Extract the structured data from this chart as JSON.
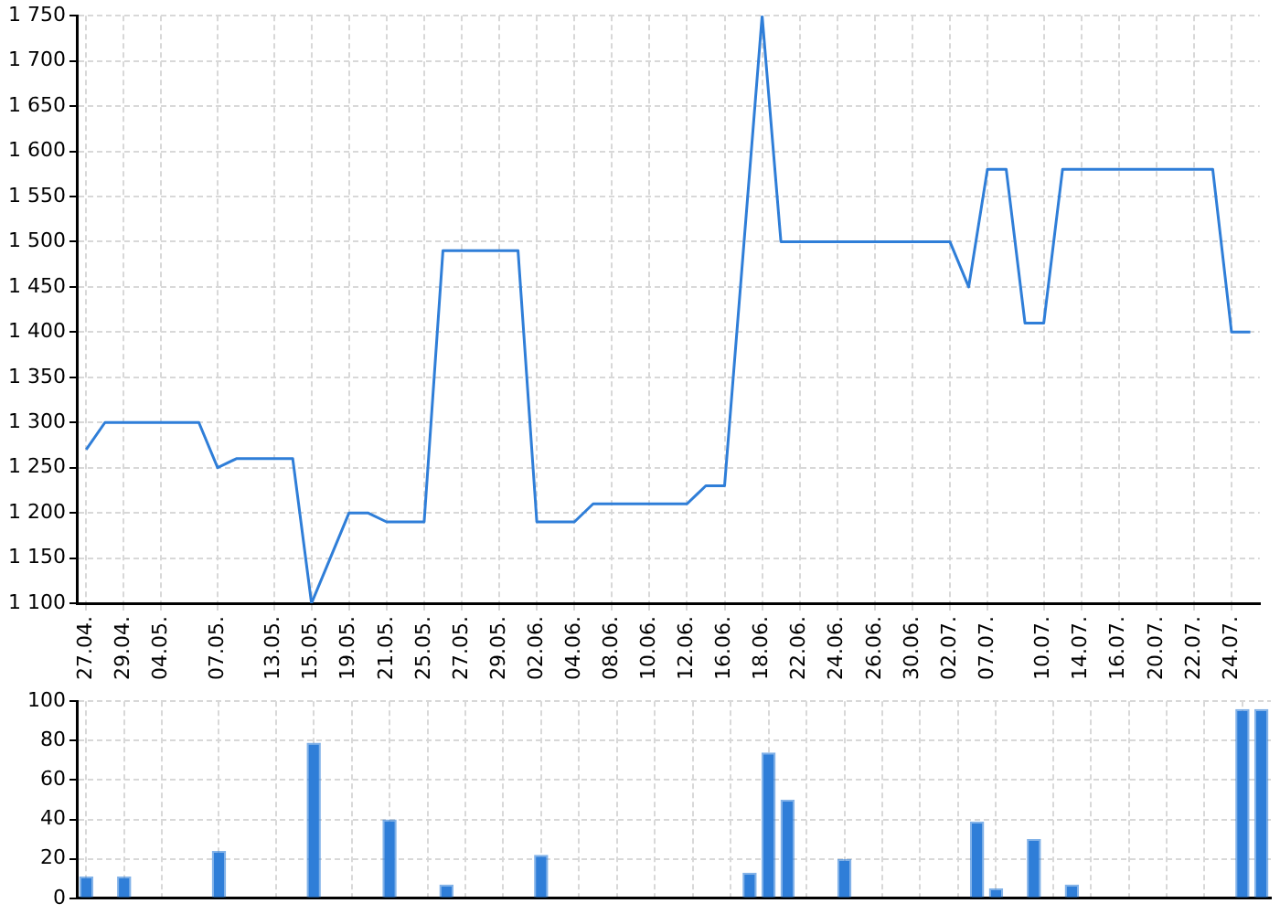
{
  "chart_data": [
    {
      "type": "line",
      "categories": [
        "27.04.",
        null,
        "29.04.",
        null,
        "04.05.",
        null,
        null,
        "07.05.",
        null,
        null,
        "13.05.",
        null,
        "15.05.",
        null,
        "19.05.",
        null,
        "21.05.",
        null,
        "25.05.",
        null,
        "27.05.",
        null,
        "29.05.",
        null,
        "02.06.",
        null,
        "04.06.",
        null,
        "08.06.",
        null,
        "10.06.",
        null,
        "12.06.",
        null,
        "16.06.",
        null,
        "18.06.",
        null,
        "22.06.",
        null,
        "24.06.",
        null,
        "26.06.",
        null,
        "30.06.",
        null,
        "02.07.",
        null,
        "07.07.",
        null,
        null,
        "10.07.",
        null,
        "14.07.",
        null,
        "16.07.",
        null,
        "20.07.",
        null,
        "22.07.",
        null,
        "24.07.",
        null
      ],
      "series": [
        {
          "color": "#2f7ed8",
          "values": [
            1270,
            1300,
            1300,
            1300,
            1300,
            1300,
            1300,
            1250,
            1260,
            1260,
            1260,
            1260,
            1100,
            1150,
            1200,
            1200,
            1190,
            1190,
            1190,
            1490,
            1490,
            1490,
            1490,
            1490,
            1190,
            1190,
            1190,
            1210,
            1210,
            1210,
            1210,
            1210,
            1210,
            1230,
            1230,
            1490,
            1750,
            1500,
            1500,
            1500,
            1500,
            1500,
            1500,
            1500,
            1500,
            1500,
            1500,
            1450,
            1580,
            1580,
            1410,
            1410,
            1580,
            1580,
            1580,
            1580,
            1580,
            1580,
            1580,
            1580,
            1580,
            1400,
            1400
          ]
        }
      ],
      "ylim": [
        1100,
        1750
      ],
      "yticks": [
        {
          "value": 1100,
          "label": "1 100"
        },
        {
          "value": 1150,
          "label": "1 150"
        },
        {
          "value": 1200,
          "label": "1 200"
        },
        {
          "value": 1250,
          "label": "1 250"
        },
        {
          "value": 1300,
          "label": "1 300"
        },
        {
          "value": 1350,
          "label": "1 350"
        },
        {
          "value": 1400,
          "label": "1 400"
        },
        {
          "value": 1450,
          "label": "1 450"
        },
        {
          "value": 1500,
          "label": "1 500"
        },
        {
          "value": 1550,
          "label": "1 550"
        },
        {
          "value": 1600,
          "label": "1 600"
        },
        {
          "value": 1650,
          "label": "1 650"
        },
        {
          "value": 1700,
          "label": "1 700"
        },
        {
          "value": 1750,
          "label": "1 750"
        }
      ],
      "grid": true,
      "marker": "none"
    },
    {
      "type": "bar",
      "categories": [
        "27.04.",
        null,
        "29.04.",
        null,
        "04.05.",
        null,
        null,
        "07.05.",
        null,
        null,
        "13.05.",
        null,
        "15.05.",
        null,
        "19.05.",
        null,
        "21.05.",
        null,
        "25.05.",
        null,
        "27.05.",
        null,
        "29.05.",
        null,
        "02.06.",
        null,
        "04.06.",
        null,
        "08.06.",
        null,
        "10.06.",
        null,
        "12.06.",
        null,
        "16.06.",
        null,
        "18.06.",
        null,
        "22.06.",
        null,
        "24.06.",
        null,
        "26.06.",
        null,
        "30.06.",
        null,
        "02.07.",
        null,
        "07.07.",
        null,
        null,
        "10.07.",
        null,
        "14.07.",
        null,
        "16.07.",
        null,
        "20.07.",
        null,
        "22.07.",
        null,
        "24.07.",
        null
      ],
      "series": [
        {
          "color": "#2f7ed8",
          "values": [
            11,
            0,
            11,
            0,
            0,
            0,
            0,
            24,
            0,
            0,
            0,
            0,
            79,
            0,
            0,
            0,
            40,
            0,
            0,
            7,
            0,
            0,
            0,
            0,
            22,
            0,
            0,
            0,
            0,
            0,
            0,
            0,
            0,
            0,
            0,
            13,
            74,
            50,
            0,
            0,
            20,
            0,
            0,
            0,
            0,
            0,
            0,
            39,
            5,
            0,
            30,
            0,
            7,
            0,
            0,
            0,
            0,
            0,
            0,
            0,
            0,
            96,
            96
          ]
        }
      ],
      "ylim": [
        0,
        100
      ],
      "yticks": [
        0,
        20,
        40,
        60,
        80,
        100
      ],
      "grid": true,
      "tick_labels": "y"
    }
  ]
}
